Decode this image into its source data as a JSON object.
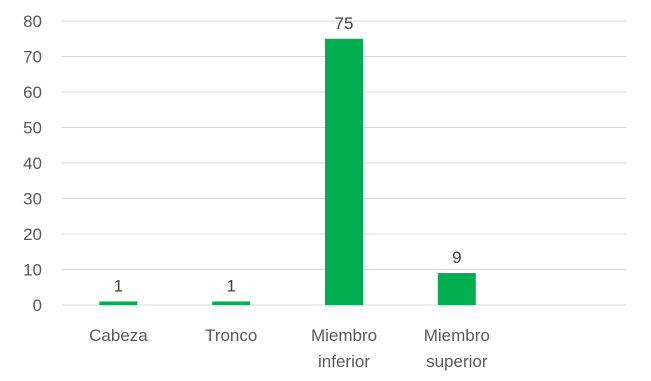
{
  "chart_data": {
    "type": "bar",
    "categories": [
      [
        "Cabeza"
      ],
      [
        "Tronco"
      ],
      [
        "Miembro",
        "inferior"
      ],
      [
        "Miembro",
        "superior"
      ],
      [
        ""
      ]
    ],
    "values": [
      1,
      1,
      75,
      9,
      null
    ],
    "data_labels": [
      "1",
      "1",
      "75",
      "9",
      ""
    ],
    "y_ticks": [
      "0",
      "10",
      "20",
      "30",
      "40",
      "50",
      "60",
      "70",
      "80"
    ],
    "ylim": [
      0,
      80
    ],
    "title": "",
    "xlabel": "",
    "ylabel": "",
    "grid": true,
    "legend": "none",
    "colors": {
      "bar": "#00b050",
      "grid": "#d9d9d9",
      "axis_text": "#595959"
    }
  }
}
